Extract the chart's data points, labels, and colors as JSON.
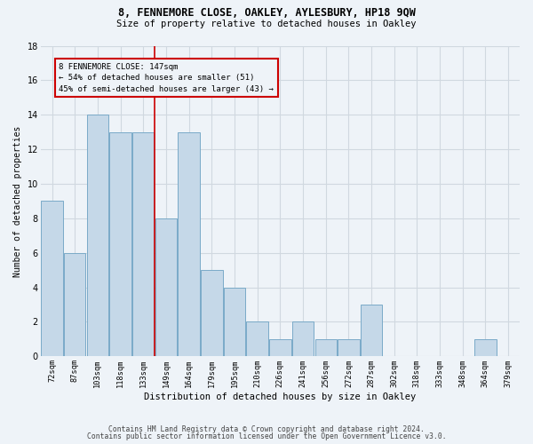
{
  "title1": "8, FENNEMORE CLOSE, OAKLEY, AYLESBURY, HP18 9QW",
  "title2": "Size of property relative to detached houses in Oakley",
  "xlabel": "Distribution of detached houses by size in Oakley",
  "ylabel": "Number of detached properties",
  "categories": [
    "72sqm",
    "87sqm",
    "103sqm",
    "118sqm",
    "133sqm",
    "149sqm",
    "164sqm",
    "179sqm",
    "195sqm",
    "210sqm",
    "226sqm",
    "241sqm",
    "256sqm",
    "272sqm",
    "287sqm",
    "302sqm",
    "318sqm",
    "333sqm",
    "348sqm",
    "364sqm",
    "379sqm"
  ],
  "values": [
    9,
    6,
    14,
    13,
    13,
    8,
    13,
    5,
    4,
    2,
    1,
    2,
    1,
    1,
    3,
    0,
    0,
    0,
    0,
    1,
    0
  ],
  "bar_color": "#c5d8e8",
  "bar_edge_color": "#7aaac8",
  "grid_color": "#d0d8e0",
  "bg_color": "#eef3f8",
  "annotation_box_color": "#cc0000",
  "vline_x": 4.5,
  "annotation_text": "8 FENNEMORE CLOSE: 147sqm\n← 54% of detached houses are smaller (51)\n45% of semi-detached houses are larger (43) →",
  "footer1": "Contains HM Land Registry data © Crown copyright and database right 2024.",
  "footer2": "Contains public sector information licensed under the Open Government Licence v3.0.",
  "ylim": [
    0,
    18
  ],
  "yticks": [
    0,
    2,
    4,
    6,
    8,
    10,
    12,
    14,
    16,
    18
  ]
}
